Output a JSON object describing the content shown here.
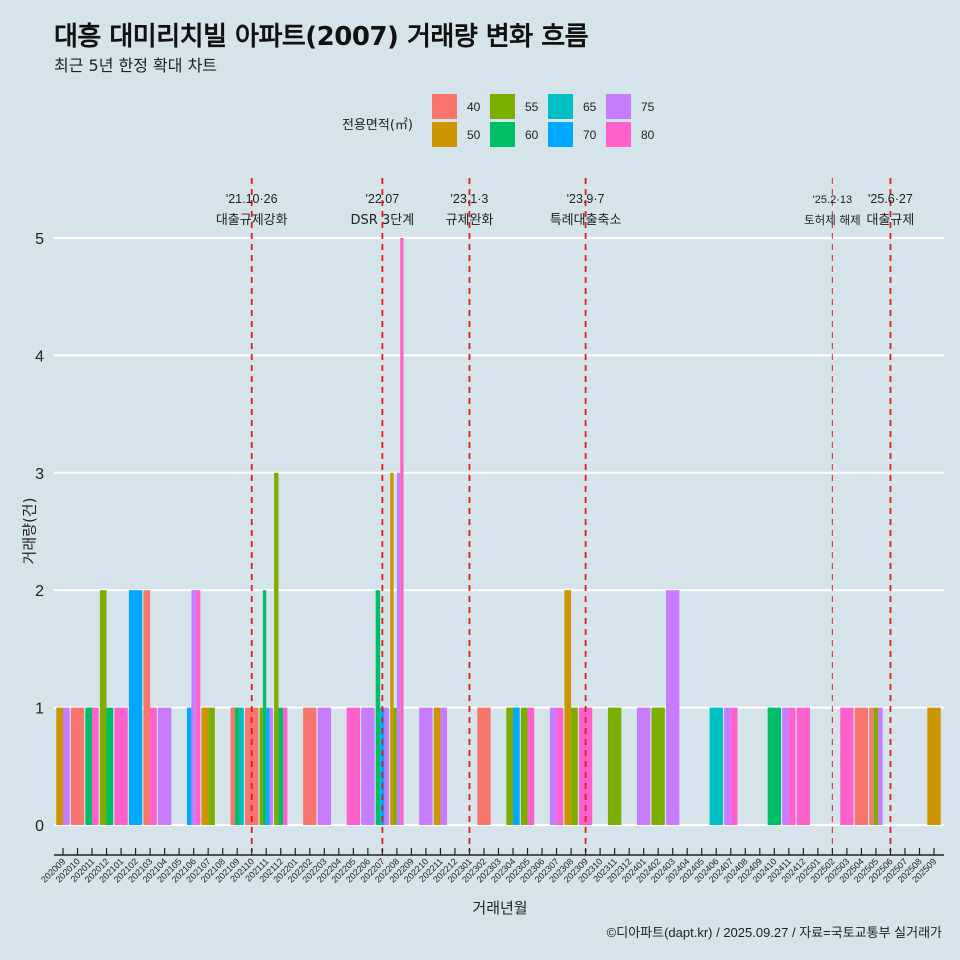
{
  "header": {
    "title": "대흥 대미리치빌 아파트(2007) 거래량 변화 흐름",
    "subtitle": "최근 5년 한정 확대 차트"
  },
  "footer": "©디아파트(dapt.kr) / 2025.09.27 / 자료=국토교통부 실거래가",
  "chart_data": {
    "type": "bar",
    "title": "대흥 대미리치빌 아파트(2007) 거래량 변화 흐름",
    "subtitle": "최근 5년 한정 확대 차트",
    "xlabel": "거래년월",
    "ylabel": "거래량(건)",
    "ylim": [
      0,
      5
    ],
    "yticks": [
      "0",
      "1",
      "2",
      "3",
      "4",
      "5"
    ],
    "grid": true,
    "legend": {
      "title": "전용면적(㎡)",
      "placement": "top",
      "entries": [
        {
          "name": "40",
          "color": "#F8766D"
        },
        {
          "name": "50",
          "color": "#CD9600"
        },
        {
          "name": "55",
          "color": "#7CAE00"
        },
        {
          "name": "60",
          "color": "#00BE67"
        },
        {
          "name": "65",
          "color": "#00BFC4"
        },
        {
          "name": "70",
          "color": "#00A9FF"
        },
        {
          "name": "75",
          "color": "#C77CFF"
        },
        {
          "name": "80",
          "color": "#FF61CC"
        }
      ]
    },
    "categories": [
      "202009",
      "202010",
      "202011",
      "202012",
      "202101",
      "202102",
      "202103",
      "202104",
      "202105",
      "202106",
      "202107",
      "202108",
      "202109",
      "202110",
      "202111",
      "202112",
      "202201",
      "202202",
      "202203",
      "202204",
      "202205",
      "202206",
      "202207",
      "202208",
      "202209",
      "202210",
      "202211",
      "202212",
      "202301",
      "202302",
      "202303",
      "202304",
      "202305",
      "202306",
      "202307",
      "202308",
      "202309",
      "202310",
      "202311",
      "202312",
      "202401",
      "202402",
      "202403",
      "202404",
      "202405",
      "202406",
      "202407",
      "202408",
      "202409",
      "202410",
      "202411",
      "202412",
      "202501",
      "202502",
      "202503",
      "202504",
      "202505",
      "202506",
      "202507",
      "202508",
      "202509"
    ],
    "bars": [
      {
        "month": "202009",
        "values": {
          "50": 1,
          "75": 1
        }
      },
      {
        "month": "202010",
        "values": {
          "40": 1
        }
      },
      {
        "month": "202011",
        "values": {
          "60": 1,
          "80": 1
        }
      },
      {
        "month": "202012",
        "values": {
          "55": 2,
          "60": 1
        }
      },
      {
        "month": "202101",
        "values": {
          "80": 1
        }
      },
      {
        "month": "202102",
        "values": {
          "70": 2
        }
      },
      {
        "month": "202103",
        "values": {
          "40": 2,
          "80": 1
        }
      },
      {
        "month": "202104",
        "values": {
          "75": 1
        }
      },
      {
        "month": "202106",
        "values": {
          "70": 1,
          "75": 2,
          "80": 2
        }
      },
      {
        "month": "202107",
        "values": {
          "50": 1,
          "55": 1
        }
      },
      {
        "month": "202109",
        "values": {
          "40": 1,
          "60": 1,
          "65": 1
        }
      },
      {
        "month": "202110",
        "values": {
          "40": 1
        }
      },
      {
        "month": "202111",
        "values": {
          "55": 1,
          "60": 2,
          "70": 1,
          "75": 1
        }
      },
      {
        "month": "202112",
        "values": {
          "55": 3,
          "60": 1,
          "80": 1
        }
      },
      {
        "month": "202202",
        "values": {
          "40": 1
        }
      },
      {
        "month": "202203",
        "values": {
          "75": 1
        }
      },
      {
        "month": "202205",
        "values": {
          "80": 1
        }
      },
      {
        "month": "202206",
        "values": {
          "75": 1
        }
      },
      {
        "month": "202207",
        "values": {
          "60": 2,
          "70": 1,
          "75": 1
        }
      },
      {
        "month": "202208",
        "values": {
          "50": 3,
          "55": 1,
          "75": 3,
          "80": 5
        }
      },
      {
        "month": "202210",
        "values": {
          "75": 1
        }
      },
      {
        "month": "202211",
        "values": {
          "50": 1,
          "75": 1
        }
      },
      {
        "month": "202302",
        "values": {
          "40": 1
        }
      },
      {
        "month": "202304",
        "values": {
          "55": 1,
          "70": 1
        }
      },
      {
        "month": "202305",
        "values": {
          "55": 1,
          "80": 1
        }
      },
      {
        "month": "202307",
        "values": {
          "75": 1,
          "80": 1
        }
      },
      {
        "month": "202308",
        "values": {
          "50": 2,
          "55": 1
        }
      },
      {
        "month": "202309",
        "values": {
          "80": 1
        }
      },
      {
        "month": "202311",
        "values": {
          "55": 1
        }
      },
      {
        "month": "202401",
        "values": {
          "75": 1
        }
      },
      {
        "month": "202402",
        "values": {
          "55": 1
        }
      },
      {
        "month": "202403",
        "values": {
          "75": 2
        }
      },
      {
        "month": "202406",
        "values": {
          "65": 1
        }
      },
      {
        "month": "202407",
        "values": {
          "75": 1,
          "80": 1
        }
      },
      {
        "month": "202410",
        "values": {
          "60": 1
        }
      },
      {
        "month": "202411",
        "values": {
          "75": 1,
          "80": 1
        }
      },
      {
        "month": "202412",
        "values": {
          "80": 1
        }
      },
      {
        "month": "202503",
        "values": {
          "80": 1
        }
      },
      {
        "month": "202504",
        "values": {
          "40": 1
        }
      },
      {
        "month": "202505",
        "values": {
          "40": 1,
          "55": 1,
          "75": 1
        }
      },
      {
        "month": "202509",
        "values": {
          "50": 1
        }
      }
    ],
    "events": [
      {
        "month": "202110",
        "date": "'21.10·26",
        "label": "대출규제강화",
        "style": "strong"
      },
      {
        "month": "202207",
        "date": "'22.07",
        "label": "DSR 3단계",
        "style": "strong"
      },
      {
        "month": "202301",
        "date": "'23.1·3",
        "label": "규제완화",
        "style": "strong"
      },
      {
        "month": "202309",
        "date": "'23.9·7",
        "label": "특례대출축소",
        "style": "strong"
      },
      {
        "month": "202502",
        "date": "'25.2·13",
        "label": "토허제 해제",
        "style": "light"
      },
      {
        "month": "202506",
        "date": "'25.6·27",
        "label": "대출규제",
        "style": "strong"
      }
    ],
    "event_color": "#E41A1C"
  }
}
